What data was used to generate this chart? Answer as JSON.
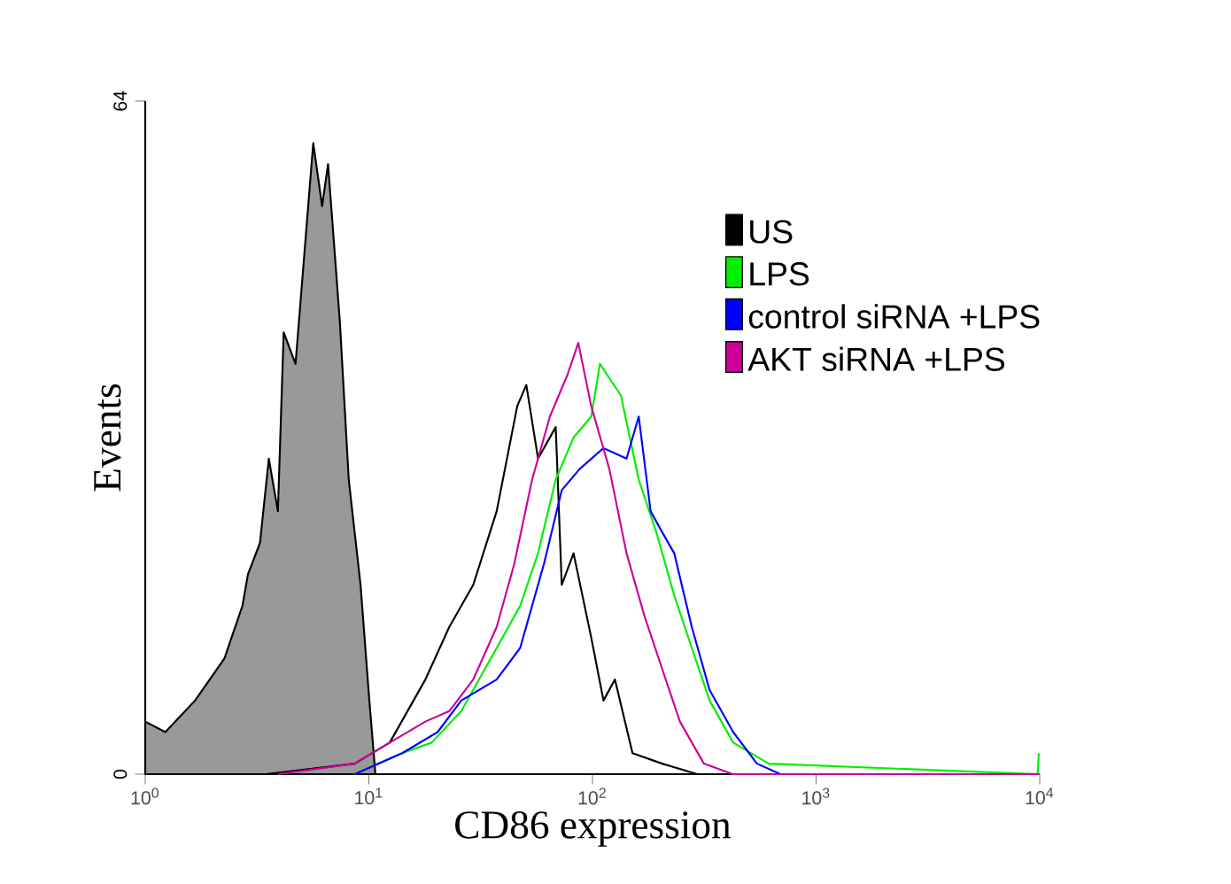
{
  "chart_data": {
    "type": "line",
    "xlabel": "CD86 expression",
    "ylabel": "Events",
    "log": "x",
    "xlim": [
      1,
      10000
    ],
    "ylim": [
      0,
      64
    ],
    "xticks": [
      {
        "value": 1,
        "label": "10$^{0}$"
      },
      {
        "value": 10,
        "label": "10$^{1}$"
      },
      {
        "value": 100,
        "label": "10$^{2}$"
      },
      {
        "value": 1000,
        "label": "10$^{3}$"
      },
      {
        "value": 10000,
        "label": "10$^{4}$"
      }
    ],
    "yticks": [
      0,
      64
    ],
    "legend": "top right",
    "grid": false,
    "marker": "none",
    "line_style": "solid",
    "series": [
      {
        "type": "area",
        "color": "#999999",
        "x": [
          1.0,
          1.23,
          1.67,
          2.26,
          2.72,
          2.88,
          3.26,
          3.57,
          3.92,
          4.16,
          4.7,
          5.64,
          6.18,
          6.57,
          7.42,
          8.13,
          9.18,
          10.05,
          10.7
        ],
        "values": [
          5,
          4,
          7,
          11,
          16,
          19,
          22,
          30,
          25,
          42,
          39,
          60,
          54,
          58,
          43,
          28,
          18,
          7,
          0
        ]
      },
      {
        "name": "US",
        "color": "#000000",
        "x": [
          3.46,
          8.64,
          12.4,
          17.9,
          22.9,
          29.3,
          37.3,
          46.1,
          50.6,
          57.1,
          68.5,
          72.9,
          82.3,
          98.7,
          112,
          126,
          151,
          205,
          294,
          10000
        ],
        "values": [
          0,
          1,
          3,
          9,
          14,
          18,
          25,
          35,
          37,
          30,
          33,
          18,
          21,
          13,
          7,
          9,
          2,
          1,
          0,
          0
        ]
      },
      {
        "name": "LPS",
        "color": "#00ee00",
        "x": [
          8.64,
          14.1,
          19.1,
          25.9,
          35.1,
          47.5,
          57.1,
          68.5,
          82.3,
          98.7,
          108,
          134,
          161,
          193,
          232,
          278,
          334,
          426,
          614,
          9800,
          9900
        ],
        "values": [
          0,
          2,
          3,
          6,
          11,
          16,
          21,
          28,
          32,
          34,
          39,
          36,
          28,
          23,
          17,
          12,
          7,
          3,
          1,
          0,
          2
        ]
      },
      {
        "name": "control siRNA +LPS",
        "color": "#0000ff",
        "x": [
          8.64,
          14.1,
          20.3,
          25.9,
          37.3,
          47.5,
          60.7,
          72.9,
          87.5,
          112,
          142,
          161,
          182,
          205,
          232,
          278,
          334,
          426,
          544,
          693,
          10000
        ],
        "values": [
          0,
          2,
          4,
          7,
          9,
          12,
          20,
          27,
          29,
          31,
          30,
          34,
          25,
          23,
          21,
          14,
          8,
          4,
          1,
          0,
          0
        ]
      },
      {
        "name": "AKT siRNA +LPS",
        "color": "#cc0099",
        "x": [
          3.92,
          8.64,
          12.4,
          17.9,
          22.9,
          29.3,
          37.3,
          44.7,
          53.7,
          64.5,
          77.4,
          86.4,
          98.7,
          119,
          142,
          171,
          205,
          246,
          315,
          424,
          10000
        ],
        "values": [
          0,
          1,
          3,
          5,
          6,
          9,
          14,
          20,
          28,
          34,
          38,
          41,
          35,
          29,
          21,
          15,
          10,
          5,
          1,
          0,
          0
        ]
      }
    ]
  }
}
